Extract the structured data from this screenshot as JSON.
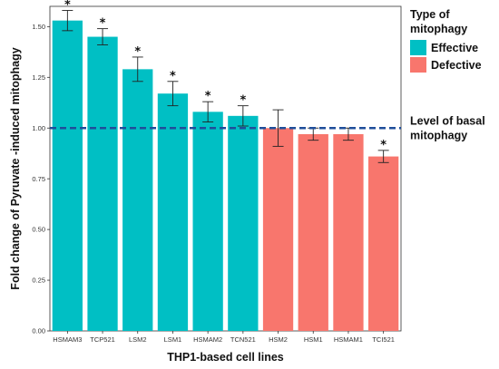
{
  "chart_data": {
    "type": "bar",
    "title": "",
    "xlabel": "THP1-based cell lines",
    "ylabel": "Fold change of Pyruvate -induced mitophagy",
    "ylim": [
      0,
      1.6
    ],
    "yticks": [
      0.0,
      0.25,
      0.5,
      0.75,
      1.0,
      1.25,
      1.5
    ],
    "ytick_labels": [
      "0.00",
      "0.25",
      "0.50",
      "0.75",
      "1.00",
      "1.25",
      "1.50"
    ],
    "grid": false,
    "categories": [
      "HSMAM3",
      "TCP521",
      "LSM2",
      "LSM1",
      "HSMAM2",
      "TCN521",
      "HSM2",
      "HSM1",
      "HSMAM1",
      "TCI521"
    ],
    "values": [
      1.53,
      1.45,
      1.29,
      1.17,
      1.08,
      1.06,
      1.0,
      0.97,
      0.97,
      0.86
    ],
    "error": [
      0.05,
      0.04,
      0.06,
      0.06,
      0.05,
      0.05,
      0.09,
      0.03,
      0.03,
      0.03
    ],
    "groups": [
      "Effective",
      "Effective",
      "Effective",
      "Effective",
      "Effective",
      "Effective",
      "Defective",
      "Defective",
      "Defective",
      "Defective"
    ],
    "significant": [
      true,
      true,
      true,
      true,
      true,
      true,
      false,
      false,
      false,
      true
    ],
    "significance_marker": "*",
    "legend": {
      "title": "Type of mitophagy",
      "title_lines": [
        "Type of",
        "mitophagy"
      ],
      "placement": "right",
      "entries": [
        {
          "name": "Effective",
          "color": "#00BFC4"
        },
        {
          "name": "Defective",
          "color": "#F8766D"
        }
      ]
    },
    "reference_line": {
      "value": 1.0,
      "style": "dashed",
      "color": "#1F4E9A",
      "label": "Level of basal mitophagy",
      "label_lines": [
        "Level of basal",
        "mitophagy"
      ]
    }
  }
}
